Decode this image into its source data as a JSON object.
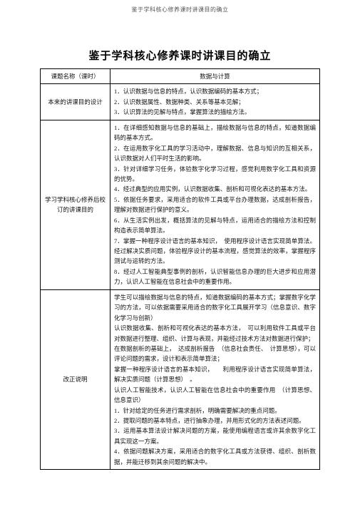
{
  "page_header": "鉴于学科核心修养课时讲课目的确立",
  "doc_title": "鉴于学科核心修养课时讲课目的确立",
  "header_row": {
    "left": "课题名称（课时）",
    "right": "数据与计算"
  },
  "row1": {
    "label": "本来的讲课目的设计",
    "lines": [
      "1．认识数据与信息的特点，认识数据编码的基本方式；",
      "2．认识数据属性、数据种类、关系等基本见解；",
      "3．认识算法的见解与特点，掌握算法的描绘方法。"
    ]
  },
  "row2": {
    "label": "学习学科核心修养后校订的讲课目的",
    "lines": [
      "1．在详细感知数据与信息的基础上，描绘数据与信息的特点，知道数据编码的基本方式。",
      "2．在运用数字化工具的学习活动中，理解数据、信息与知识的互相关系，认识数据对人们平时生活的影响。",
      "3．针对详细学习任务，体验数字化学习过程，感觉利用数字化工具和资源的优势。",
      "4．经过典型的应用实例，认识数据收集、剖析和可视化表达的基本方法。",
      "5．依据任务要求，采用适合的软件工具或平台办理数据，达成剖析报告，理解对数据进行保护的意义。",
      "6．从生活实例出发，概括算法的见解与特点，运用适合的描绘方法和控制构造表示简单算法。",
      "7．掌握一种程序设计语言的基本知识，　使用程序设计语言实现简单算法。经过解决实质问题，体验程序设计的基本流程，感觉算法的效率，掌握程序测试与运转的方法。",
      "8．经过人工智能典型事例的剖析，认识智能信息办理的巨大进步和应用潜力，认识人工智能在信息社会中的重要作用。"
    ]
  },
  "row3": {
    "label": "改正说明",
    "lines": [
      "学生可以描绘数据与信息的特点，知道数据编码的基本方式；掌握数字化学习的方法，可以依据需要采用适合的数字化工具展开学习（信息意识、数字化学习与创新）",
      "认识数据收集、剖析和可视化表达的基本方法，　可以利用软件工具或平台对数据进行整理、组织、计算与表现，并能经过技术方法对数据进行保护；",
      "在数据剖析的基础上，　达成剖析报告　（信息社会责任、　计算思想），可以评论问题的需求，设计和表示简单算法；",
      "掌握一种程序设计语言的基本知识，　　利用程序设计语言实现简单算法，解决实质问题（计算思想）　。",
      "认识人工智能技术，认识人工智能在信息社会中的重要作用　（计算思想、信息意识）",
      "1．针对给定的任务进行需求剖析，明确需要解决的重点问题。",
      "2．提取问题的基本特点，进行抽象办理，并用形式化的方法表述问题。",
      "3．运用基本算法设计解决问题的方案，能使用编程语言或许其余数字化工具实现这一方案。",
      "4．依据问题解决方案，采用适合的数字化工具或方法获得、组织、剖析数据，并能迁移到其余问题的解决中。"
    ]
  }
}
